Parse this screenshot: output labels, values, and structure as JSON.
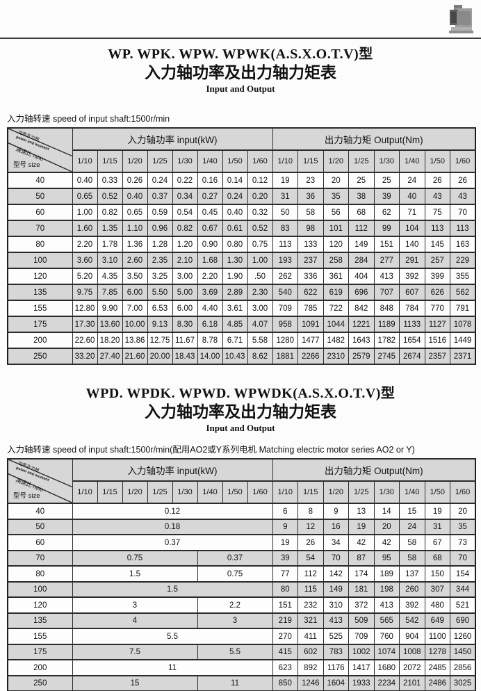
{
  "colors": {
    "row_shade": "#d7d7d7",
    "border": "#2b2b2b",
    "rule": "#3c3c3c"
  },
  "photo_name": "worm-gear-reducer-photo",
  "sections": [
    {
      "title_model": "WP. WPK. WPW. WPWK(A.S.X.O.T.V)型",
      "title_cn": "入力轴功率及出力轴力矩表",
      "title_sub": "Input and Output",
      "note": "入力轴转速  speed of input shaft:1500r/min",
      "table": {
        "corner": {
          "diag_top_cn": "功率及力矩",
          "diag_top_en": "power and moment",
          "diag_mid": "减速比 ratio",
          "bottom": "型号 size"
        },
        "input_group": "入力轴功率  input(kW)",
        "output_group": "出力轴力矩  Output(Nm)",
        "ratios": [
          "1/10",
          "1/15",
          "1/20",
          "1/25",
          "1/30",
          "1/40",
          "1/50",
          "1/60"
        ],
        "rows": [
          {
            "size": "40",
            "inputs": [
              "0.40",
              "0.33",
              "0.26",
              "0.24",
              "0.22",
              "0.16",
              "0.14",
              "0.12"
            ],
            "outputs": [
              "19",
              "23",
              "20",
              "25",
              "25",
              "24",
              "26",
              "26"
            ]
          },
          {
            "size": "50",
            "inputs": [
              "0.65",
              "0.52",
              "0.40",
              "0.37",
              "0.34",
              "0.27",
              "0.24",
              "0.20"
            ],
            "outputs": [
              "31",
              "36",
              "35",
              "38",
              "39",
              "40",
              "43",
              "43"
            ]
          },
          {
            "size": "60",
            "inputs": [
              "1.00",
              "0.82",
              "0.65",
              "0.59",
              "0.54",
              "0.45",
              "0.40",
              "0.32"
            ],
            "outputs": [
              "50",
              "58",
              "56",
              "68",
              "62",
              "71",
              "75",
              "70"
            ]
          },
          {
            "size": "70",
            "inputs": [
              "1.60",
              "1.35",
              "1.10",
              "0.96",
              "0.82",
              "0.67",
              "0.61",
              "0.52"
            ],
            "outputs": [
              "83",
              "98",
              "101",
              "112",
              "99",
              "104",
              "113",
              "113"
            ]
          },
          {
            "size": "80",
            "inputs": [
              "2.20",
              "1.78",
              "1.36",
              "1.28",
              "1.20",
              "0.90",
              "0.80",
              "0.75"
            ],
            "outputs": [
              "113",
              "133",
              "120",
              "149",
              "151",
              "140",
              "145",
              "163"
            ]
          },
          {
            "size": "100",
            "inputs": [
              "3.60",
              "3.10",
              "2.60",
              "2.35",
              "2.10",
              "1.68",
              "1.30",
              "1.00"
            ],
            "outputs": [
              "193",
              "237",
              "258",
              "284",
              "277",
              "291",
              "257",
              "229"
            ]
          },
          {
            "size": "120",
            "inputs": [
              "5.20",
              "4.35",
              "3.50",
              "3.25",
              "3.00",
              "2.20",
              "1.90",
              ".50"
            ],
            "outputs": [
              "262",
              "336",
              "361",
              "404",
              "413",
              "392",
              "399",
              "355"
            ]
          },
          {
            "size": "135",
            "inputs": [
              "9.75",
              "7.85",
              "6.00",
              "5.50",
              "5.00",
              "3.69",
              "2.89",
              "2.30"
            ],
            "outputs": [
              "540",
              "622",
              "619",
              "696",
              "707",
              "607",
              "626",
              "562"
            ]
          },
          {
            "size": "155",
            "inputs": [
              "12.80",
              "9.90",
              "7.00",
              "6.53",
              "6.00",
              "4.40",
              "3.61",
              "3.00"
            ],
            "outputs": [
              "709",
              "785",
              "722",
              "842",
              "848",
              "784",
              "770",
              "791"
            ]
          },
          {
            "size": "175",
            "inputs": [
              "17.30",
              "13.60",
              "10.00",
              "9.13",
              "8.30",
              "6.18",
              "4.85",
              "4.07"
            ],
            "outputs": [
              "958",
              "1091",
              "1044",
              "1221",
              "1189",
              "1133",
              "1127",
              "1078"
            ]
          },
          {
            "size": "200",
            "inputs": [
              "22.60",
              "18.20",
              "13.86",
              "12.75",
              "11.67",
              "8.78",
              "6.71",
              "5.58"
            ],
            "outputs": [
              "1280",
              "1477",
              "1482",
              "1643",
              "1782",
              "1654",
              "1516",
              "1449"
            ]
          },
          {
            "size": "250",
            "inputs": [
              "33.20",
              "27.40",
              "21.60",
              "20.00",
              "18.43",
              "14.00",
              "10.43",
              "8.62"
            ],
            "outputs": [
              "1881",
              "2266",
              "2310",
              "2579",
              "2745",
              "2674",
              "2357",
              "2371"
            ]
          }
        ]
      }
    },
    {
      "title_model": "WPD. WPDK. WPWD. WPWDK(A.S.X.O.T.V)型",
      "title_cn": "入力轴功率及出力轴力矩表",
      "title_sub": "Input and Output",
      "note": "入力轴转速  speed of input shaft:1500r/min(配用AO2或Y系列电机  Matching electric motor series AO2 or Y)",
      "table": {
        "corner": {
          "diag_top_cn": "功率及力矩",
          "diag_top_en": "power and moment",
          "diag_mid": "减速比 ratio",
          "bottom": "型号 size"
        },
        "input_group": "入力轴功率  input(kW)",
        "output_group": "出力轴力矩  Output(Nm)",
        "ratios": [
          "1/10",
          "1/15",
          "1/20",
          "1/25",
          "1/30",
          "1/40",
          "1/50",
          "1/60"
        ],
        "rows": [
          {
            "size": "40",
            "inputs": [
              {
                "v": "0.12",
                "span": 8
              }
            ],
            "outputs": [
              "6",
              "8",
              "9",
              "13",
              "14",
              "15",
              "19",
              "20"
            ]
          },
          {
            "size": "50",
            "inputs": [
              {
                "v": "0.18",
                "span": 8
              }
            ],
            "outputs": [
              "9",
              "12",
              "16",
              "19",
              "20",
              "24",
              "31",
              "35"
            ]
          },
          {
            "size": "60",
            "inputs": [
              {
                "v": "0.37",
                "span": 8
              }
            ],
            "outputs": [
              "19",
              "26",
              "34",
              "42",
              "42",
              "58",
              "67",
              "73"
            ]
          },
          {
            "size": "70",
            "inputs": [
              {
                "v": "0.75",
                "span": 5
              },
              {
                "v": "0.37",
                "span": 3
              }
            ],
            "outputs": [
              "39",
              "54",
              "70",
              "87",
              "95",
              "58",
              "68",
              "70"
            ]
          },
          {
            "size": "80",
            "inputs": [
              {
                "v": "1.5",
                "span": 5
              },
              {
                "v": "0.75",
                "span": 3
              }
            ],
            "outputs": [
              "77",
              "112",
              "142",
              "174",
              "189",
              "137",
              "150",
              "154"
            ]
          },
          {
            "size": "100",
            "inputs": [
              {
                "v": "1.5",
                "span": 8
              }
            ],
            "outputs": [
              "80",
              "115",
              "149",
              "181",
              "198",
              "260",
              "307",
              "344"
            ]
          },
          {
            "size": "120",
            "inputs": [
              {
                "v": "3",
                "span": 5
              },
              {
                "v": "2.2",
                "span": 3
              }
            ],
            "outputs": [
              "151",
              "232",
              "310",
              "372",
              "413",
              "392",
              "480",
              "521"
            ]
          },
          {
            "size": "135",
            "inputs": [
              {
                "v": "4",
                "span": 5
              },
              {
                "v": "3",
                "span": 3
              }
            ],
            "outputs": [
              "219",
              "321",
              "413",
              "509",
              "565",
              "542",
              "649",
              "690"
            ]
          },
          {
            "size": "155",
            "inputs": [
              {
                "v": "5.5",
                "span": 8
              }
            ],
            "outputs": [
              "270",
              "411",
              "525",
              "709",
              "760",
              "904",
              "1100",
              "1260"
            ]
          },
          {
            "size": "175",
            "inputs": [
              {
                "v": "7.5",
                "span": 5
              },
              {
                "v": "5.5",
                "span": 3
              }
            ],
            "outputs": [
              "415",
              "602",
              "783",
              "1002",
              "1074",
              "1008",
              "1278",
              "1450"
            ]
          },
          {
            "size": "200",
            "inputs": [
              {
                "v": "11",
                "span": 8
              }
            ],
            "outputs": [
              "623",
              "892",
              "1176",
              "1417",
              "1680",
              "2072",
              "2485",
              "2856"
            ]
          },
          {
            "size": "250",
            "inputs": [
              {
                "v": "15",
                "span": 5
              },
              {
                "v": "11",
                "span": 3
              }
            ],
            "outputs": [
              "850",
              "1246",
              "1604",
              "1933",
              "2234",
              "2101",
              "2486",
              "3025"
            ]
          }
        ]
      }
    }
  ]
}
